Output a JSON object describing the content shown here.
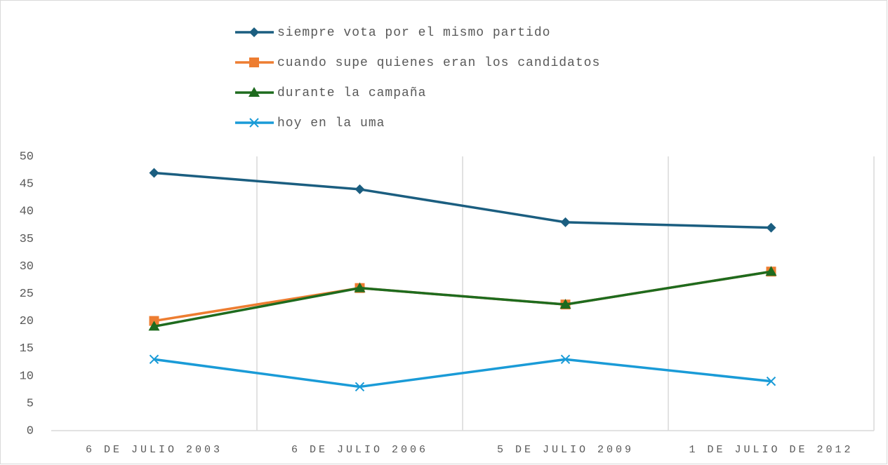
{
  "chart_data": {
    "type": "line",
    "categories": [
      "6 DE JULIO 2003",
      "6 DE JULIO 2006",
      "5 DE JULIO 2009",
      "1 DE JULIO DE 2012"
    ],
    "series": [
      {
        "name": "siempre vota por el mismo partido",
        "color": "#1b5e80",
        "marker": "diamond",
        "values": [
          47,
          44,
          38,
          37
        ]
      },
      {
        "name": "cuando supe quienes eran los candidatos",
        "color": "#ed7d31",
        "marker": "square",
        "values": [
          20,
          26,
          23,
          29
        ]
      },
      {
        "name": "durante la campaña",
        "color": "#1e6b1e",
        "marker": "triangle",
        "values": [
          19,
          26,
          23,
          29
        ]
      },
      {
        "name": "hoy en la uma",
        "color": "#1a9bd7",
        "marker": "x",
        "values": [
          13,
          8,
          13,
          9
        ]
      }
    ],
    "ylim": [
      0,
      50
    ],
    "yticks": [
      0,
      5,
      10,
      15,
      20,
      25,
      30,
      35,
      40,
      45,
      50
    ],
    "legend": "top"
  }
}
